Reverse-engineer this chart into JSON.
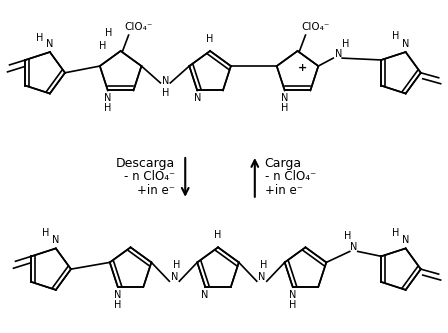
{
  "background": "#ffffff",
  "text_color": "#000000",
  "line_color": "#000000",
  "fig_width": 4.48,
  "fig_height": 3.33,
  "dpi": 100,
  "left_label": "Descarga",
  "right_label": "Carga",
  "sub1": "- n ClO₄⁻",
  "sub2": "+in e⁻"
}
